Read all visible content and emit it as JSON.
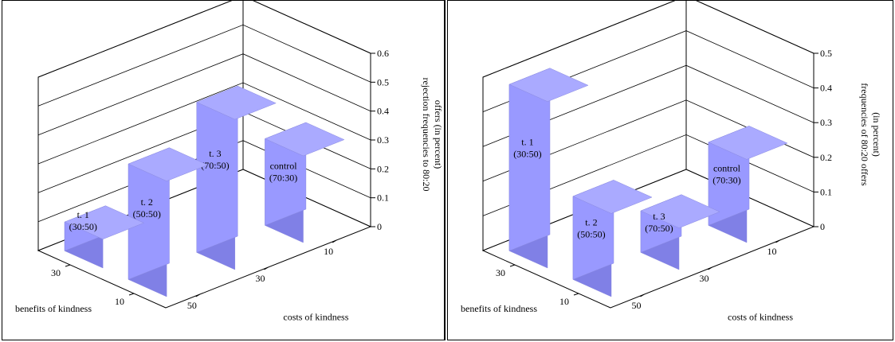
{
  "chart_data": [
    {
      "type": "bar",
      "title": "",
      "zlabel_lines": [
        "rejection frequencies to 80:20",
        "offers (in percent)"
      ],
      "xlabel": "costs of kindness",
      "ylabel": "benefits of kindness",
      "x_ticks": [
        "10",
        "30",
        "50"
      ],
      "y_ticks": [
        "30",
        "10"
      ],
      "z_ticks": [
        "0",
        "0.1",
        "0.2",
        "0.3",
        "0.4",
        "0.5",
        "0.6"
      ],
      "zlim": [
        0,
        0.6
      ],
      "bars": [
        {
          "label_lines": [
            "t. 1",
            "(30:50)"
          ],
          "costs": "50",
          "benefits": "30",
          "value": 0.1
        },
        {
          "label_lines": [
            "t. 2",
            "(50:50)"
          ],
          "costs": "50",
          "benefits": "10",
          "value": 0.4
        },
        {
          "label_lines": [
            "t. 3",
            "(70:50)"
          ],
          "costs": "30",
          "benefits": "10",
          "value": 0.52
        },
        {
          "label_lines": [
            "control",
            "(70:30)"
          ],
          "costs": "10",
          "benefits": "10",
          "value": 0.3
        }
      ],
      "bar_color": "#9999ff",
      "grid": true
    },
    {
      "type": "bar",
      "title": "",
      "zlabel_lines": [
        "frequencies of 80:20 offers",
        "(in percent)"
      ],
      "xlabel": "costs of kindness",
      "ylabel": "benefits of kindness",
      "x_ticks": [
        "10",
        "30",
        "50"
      ],
      "y_ticks": [
        "30",
        "10"
      ],
      "z_ticks": [
        "0",
        "0.1",
        "0.2",
        "0.3",
        "0.4",
        "0.5"
      ],
      "zlim": [
        0,
        0.5
      ],
      "bars": [
        {
          "label_lines": [
            "t. 1",
            "(30:50)"
          ],
          "costs": "50",
          "benefits": "30",
          "value": 0.48
        },
        {
          "label_lines": [
            "t. 2",
            "(50:50)"
          ],
          "costs": "50",
          "benefits": "10",
          "value": 0.24
        },
        {
          "label_lines": [
            "t. 3",
            "(70:50)"
          ],
          "costs": "30",
          "benefits": "10",
          "value": 0.12
        },
        {
          "label_lines": [
            "control",
            "(70:30)"
          ],
          "costs": "10",
          "benefits": "10",
          "value": 0.24
        }
      ],
      "bar_color": "#9999ff",
      "grid": true
    }
  ]
}
